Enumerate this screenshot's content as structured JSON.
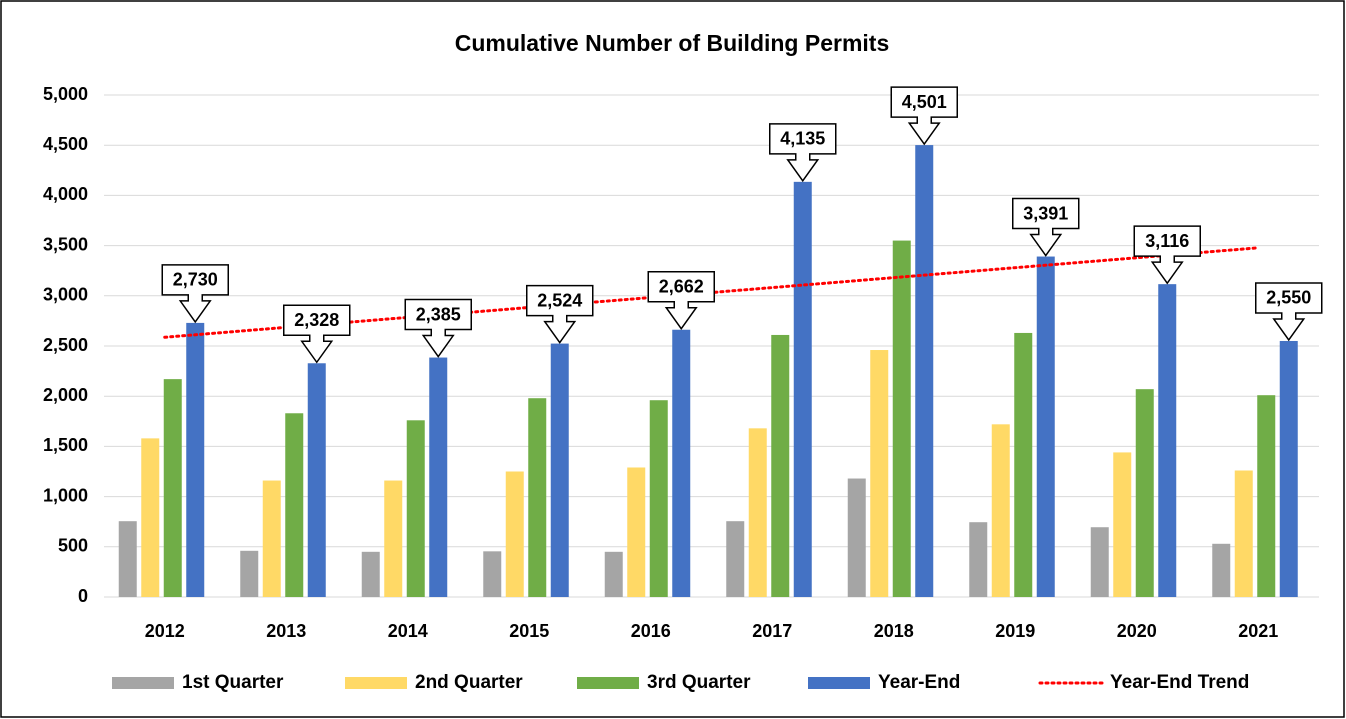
{
  "chart_data": {
    "type": "bar",
    "title": "Cumulative Number of Building Permits",
    "categories": [
      "2012",
      "2013",
      "2014",
      "2015",
      "2016",
      "2017",
      "2018",
      "2019",
      "2020",
      "2021"
    ],
    "series": [
      {
        "name": "1st Quarter",
        "color": "#a5a5a5",
        "values": [
          755,
          460,
          450,
          455,
          450,
          755,
          1180,
          745,
          695,
          530
        ]
      },
      {
        "name": "2nd Quarter",
        "color": "#ffd966",
        "values": [
          1580,
          1160,
          1160,
          1250,
          1290,
          1680,
          2460,
          1720,
          1440,
          1260
        ]
      },
      {
        "name": "3rd Quarter",
        "color": "#70ad47",
        "values": [
          2170,
          1830,
          1760,
          1980,
          1960,
          2610,
          3550,
          2630,
          2070,
          2010
        ]
      },
      {
        "name": "Year-End",
        "color": "#4472c4",
        "values": [
          2730,
          2328,
          2385,
          2524,
          2662,
          4135,
          4501,
          3391,
          3116,
          2550
        ],
        "value_labels": [
          "2,730",
          "2,328",
          "2,385",
          "2,524",
          "2,662",
          "4,135",
          "4,501",
          "3,391",
          "3,116",
          "2,550"
        ]
      },
      {
        "name": "Year-End Trend",
        "color": "#ff0000",
        "type": "trendline",
        "values": [
          2587,
          2686,
          2785,
          2884,
          2983,
          3082,
          3181,
          3280,
          3379,
          3478
        ]
      }
    ],
    "ylim": [
      0,
      5000
    ],
    "yticks": [
      0,
      {
        "value": 500,
        "label": "500"
      },
      {
        "value": 1000,
        "label": "1,000"
      },
      {
        "value": 1500,
        "label": "1,500"
      },
      {
        "value": 2000,
        "label": "2,000"
      },
      {
        "value": 2500,
        "label": "2,500"
      },
      {
        "value": 3000,
        "label": "3,000"
      },
      {
        "value": 3500,
        "label": "3,500"
      },
      {
        "value": 4000,
        "label": "4,000"
      },
      {
        "value": 4500,
        "label": "4,500"
      },
      {
        "value": 5000,
        "label": "5,000"
      }
    ],
    "grid": true,
    "legend": "bottom"
  }
}
